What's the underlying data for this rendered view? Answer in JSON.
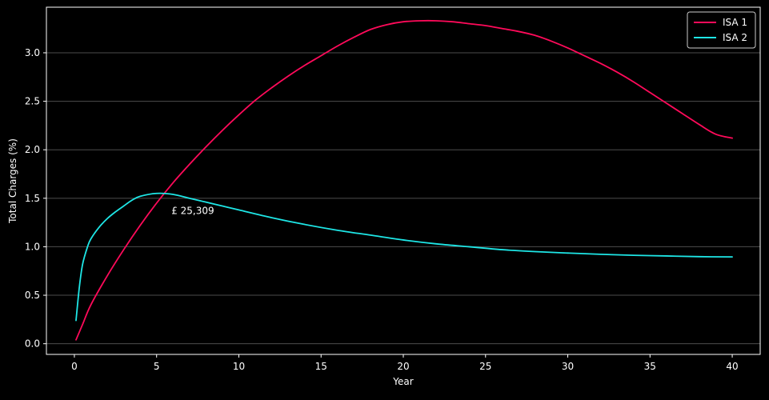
{
  "chart_data": {
    "type": "line",
    "xlabel": "Year",
    "ylabel": "Total Charges (%)",
    "xlim": [
      -1.7,
      41.7
    ],
    "ylim": [
      -0.11,
      3.47
    ],
    "xticks": [
      0,
      5,
      10,
      15,
      20,
      25,
      30,
      35,
      40
    ],
    "yticks": [
      0.0,
      0.5,
      1.0,
      1.5,
      2.0,
      2.5,
      3.0
    ],
    "xtick_labels": [
      "0",
      "5",
      "10",
      "15",
      "20",
      "25",
      "30",
      "35",
      "40"
    ],
    "ytick_labels": [
      "0.0",
      "0.5",
      "1.0",
      "1.5",
      "2.0",
      "2.5",
      "3.0"
    ],
    "grid": "horizontal",
    "legend_position": "top-right",
    "annotation": {
      "text": "£ 25,309",
      "x": 5.9,
      "y": 1.37
    },
    "colors": {
      "background": "#000000",
      "frame": "#ffffff",
      "grid": "#4d4d4d"
    },
    "series": [
      {
        "name": "ISA 1",
        "color": "#ff0a5a",
        "x": [
          0.1,
          0.5,
          1,
          2,
          3,
          4,
          5,
          6,
          7,
          8,
          9,
          10,
          11,
          12,
          13,
          14,
          15,
          16,
          17,
          18,
          19,
          20,
          21,
          22,
          23,
          24,
          25,
          26,
          27,
          28,
          29,
          30,
          31,
          32,
          33,
          34,
          35,
          36,
          37,
          38,
          39,
          40
        ],
        "values": [
          0.04,
          0.2,
          0.4,
          0.7,
          0.97,
          1.22,
          1.45,
          1.66,
          1.85,
          2.03,
          2.2,
          2.36,
          2.51,
          2.64,
          2.76,
          2.87,
          2.97,
          3.07,
          3.16,
          3.24,
          3.29,
          3.32,
          3.33,
          3.33,
          3.32,
          3.3,
          3.28,
          3.25,
          3.22,
          3.18,
          3.12,
          3.05,
          2.97,
          2.89,
          2.8,
          2.7,
          2.59,
          2.48,
          2.37,
          2.26,
          2.16,
          2.12
        ]
      },
      {
        "name": "ISA 2",
        "color": "#1ee6e6",
        "x": [
          0.1,
          0.3,
          0.5,
          0.8,
          1,
          1.5,
          2,
          2.5,
          3,
          3.5,
          4,
          5,
          6,
          7,
          8,
          9,
          10,
          12,
          14,
          16,
          18,
          20,
          22,
          24,
          26,
          28,
          30,
          32,
          34,
          36,
          38,
          40
        ],
        "values": [
          0.24,
          0.58,
          0.82,
          1.0,
          1.08,
          1.2,
          1.29,
          1.36,
          1.42,
          1.48,
          1.52,
          1.55,
          1.54,
          1.5,
          1.46,
          1.42,
          1.38,
          1.3,
          1.23,
          1.17,
          1.12,
          1.07,
          1.03,
          1.0,
          0.97,
          0.95,
          0.935,
          0.922,
          0.912,
          0.905,
          0.898,
          0.895
        ]
      }
    ]
  }
}
